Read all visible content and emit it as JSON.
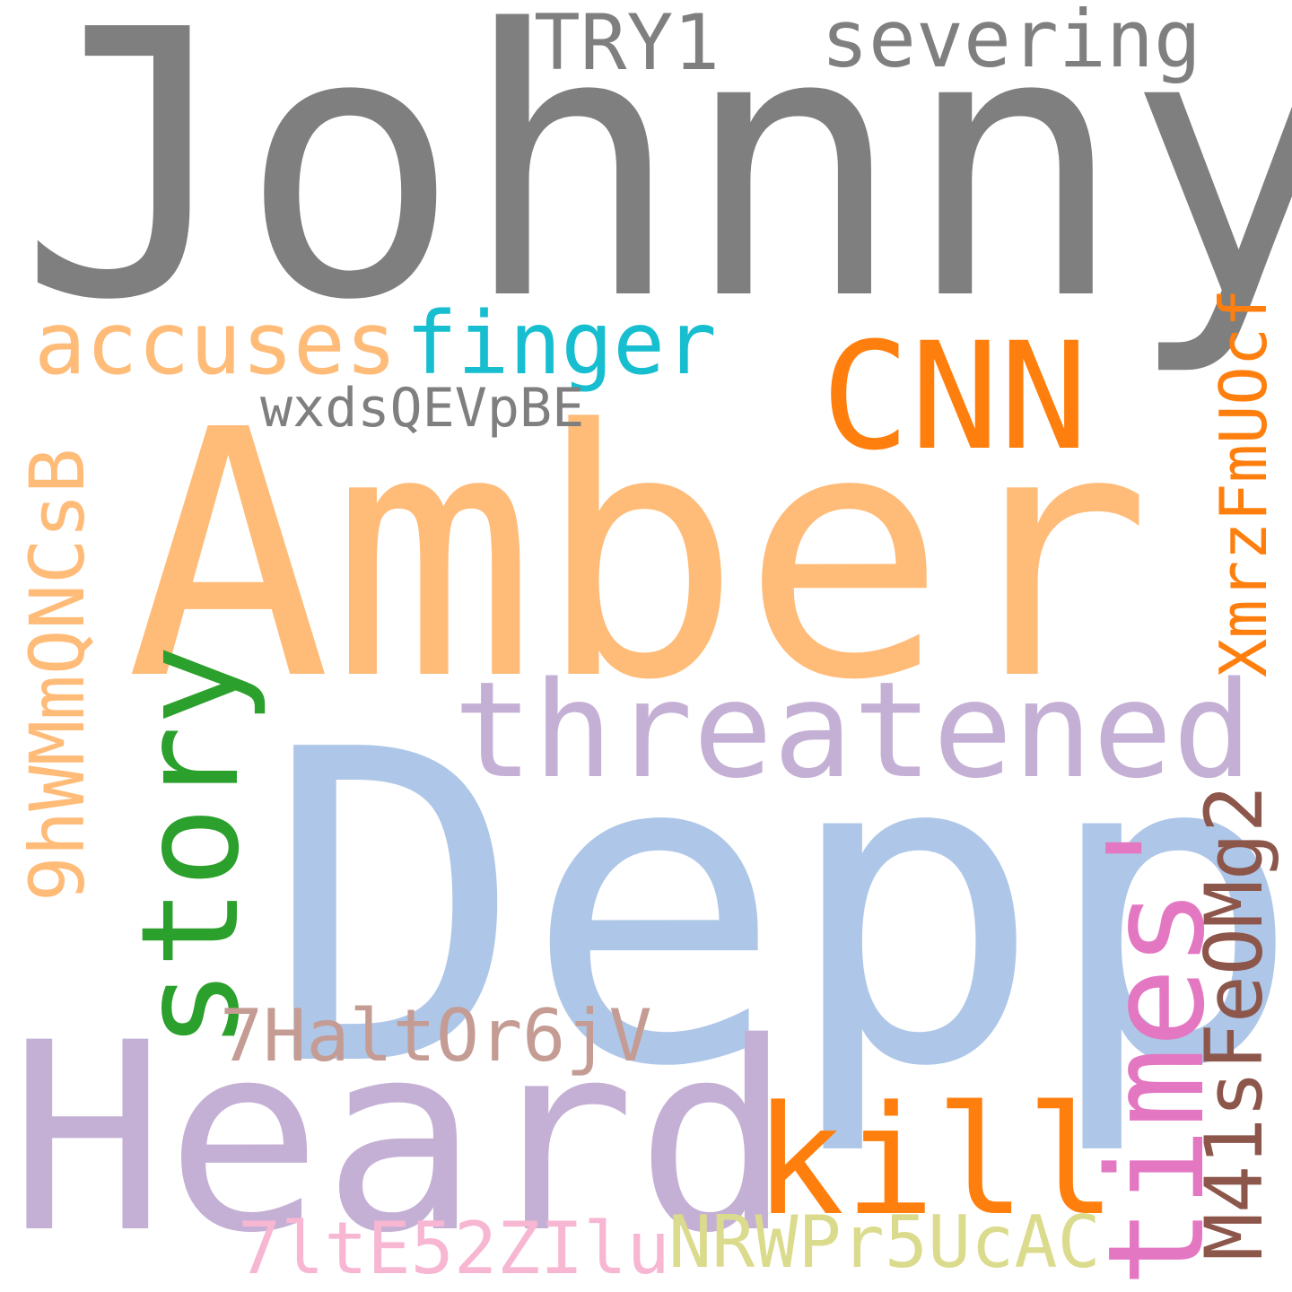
{
  "words": [
    {
      "id": "johnny",
      "text": "Johnny",
      "color": "#7f7f7f"
    },
    {
      "id": "amber",
      "text": "Amber",
      "color": "#ffbb78"
    },
    {
      "id": "depp",
      "text": "Depp",
      "color": "#aec7e8"
    },
    {
      "id": "heard",
      "text": "Heard",
      "color": "#c5b0d5"
    },
    {
      "id": "threatened",
      "text": "threatened",
      "color": "#c5b0d5"
    },
    {
      "id": "cnn",
      "text": "CNN",
      "color": "#ff7f0e"
    },
    {
      "id": "story",
      "text": "story",
      "color": "#2ca02c"
    },
    {
      "id": "times",
      "text": "times'",
      "color": "#e377c2"
    },
    {
      "id": "kill",
      "text": "kill",
      "color": "#ff7f0e"
    },
    {
      "id": "finger",
      "text": "finger",
      "color": "#17becf"
    },
    {
      "id": "accuses",
      "text": "accuses",
      "color": "#ffbb78"
    },
    {
      "id": "severing",
      "text": "severing",
      "color": "#7f7f7f"
    },
    {
      "id": "try1",
      "text": "TRY1",
      "color": "#7f7f7f"
    },
    {
      "id": "wxds",
      "text": "wxdsQEVpBE",
      "color": "#7f7f7f"
    },
    {
      "id": "xmrz",
      "text": "XmrzFmUOcf",
      "color": "#ff7f0e"
    },
    {
      "id": "nhwm",
      "text": "9hWMmQNCsB",
      "color": "#ffbb78"
    },
    {
      "id": "m41s",
      "text": "M41sFeOMg2",
      "color": "#8c564b"
    },
    {
      "id": "h7halt",
      "text": "7HaltOr6jV",
      "color": "#c49c94"
    },
    {
      "id": "l7lte",
      "text": "7ltE52ZIlu",
      "color": "#f7b6d2"
    },
    {
      "id": "nrwp",
      "text": "NRWPr5UcAC",
      "color": "#dbdb8d"
    }
  ]
}
